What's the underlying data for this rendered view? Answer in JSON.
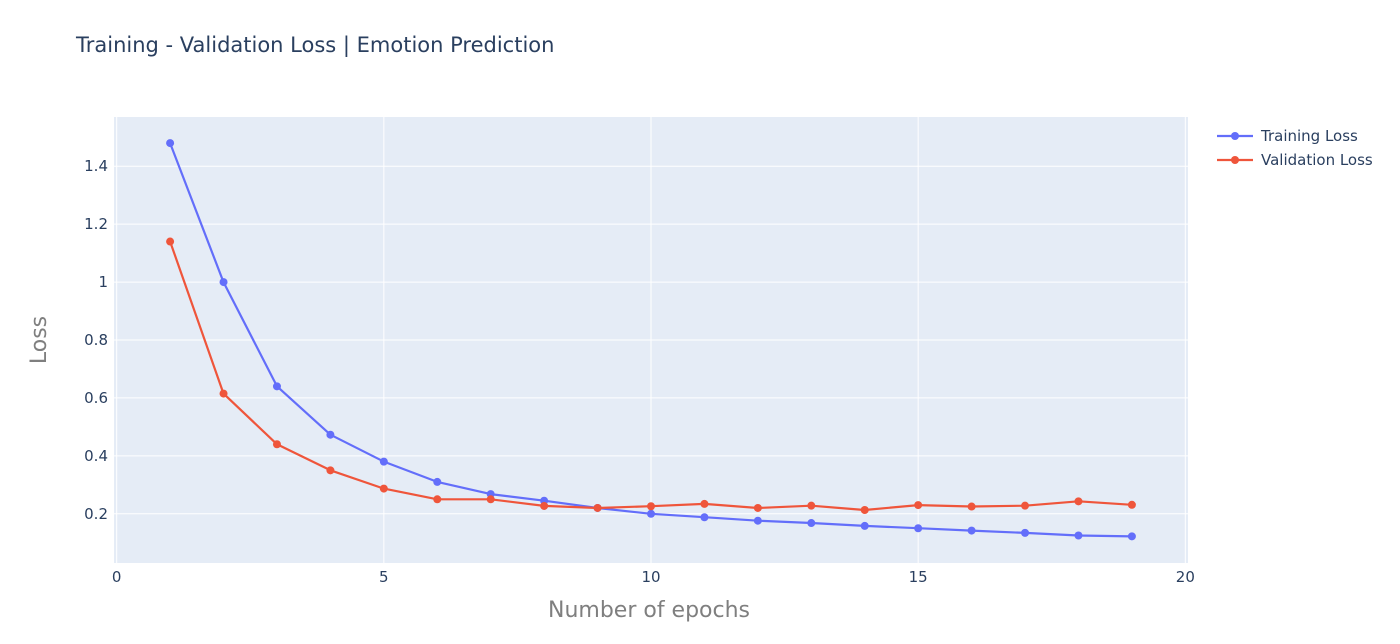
{
  "chart_data": {
    "type": "line",
    "title": "Training - Validation Loss | Emotion Prediction",
    "xlabel": "Number of epochs",
    "ylabel": "Loss",
    "xlim": [
      -0.05,
      20.05
    ],
    "ylim": [
      0.03,
      1.57
    ],
    "x_ticks": [
      0,
      5,
      10,
      15,
      20
    ],
    "y_ticks": [
      0.2,
      0.4,
      0.6,
      0.8,
      1,
      1.2,
      1.4
    ],
    "grid": true,
    "legend_position": "top-right",
    "x": [
      1,
      2,
      3,
      4,
      5,
      6,
      7,
      8,
      9,
      10,
      11,
      12,
      13,
      14,
      15,
      16,
      17,
      18,
      19
    ],
    "series": [
      {
        "name": "Training Loss",
        "color": "#636efa",
        "values": [
          1.48,
          1.0,
          0.64,
          0.473,
          0.38,
          0.31,
          0.268,
          0.245,
          0.22,
          0.2,
          0.188,
          0.176,
          0.168,
          0.158,
          0.15,
          0.142,
          0.134,
          0.125,
          0.122
        ]
      },
      {
        "name": "Validation Loss",
        "color": "#ef553b",
        "values": [
          1.14,
          0.615,
          0.44,
          0.35,
          0.287,
          0.25,
          0.25,
          0.227,
          0.22,
          0.226,
          0.234,
          0.22,
          0.228,
          0.213,
          0.23,
          0.225,
          0.228,
          0.243,
          0.231
        ]
      }
    ]
  },
  "colors": {
    "plot_background": "#e5ecf6",
    "grid": "#ffffff",
    "text": "#2a3f5f",
    "axis_title": "#7f7f7f"
  }
}
